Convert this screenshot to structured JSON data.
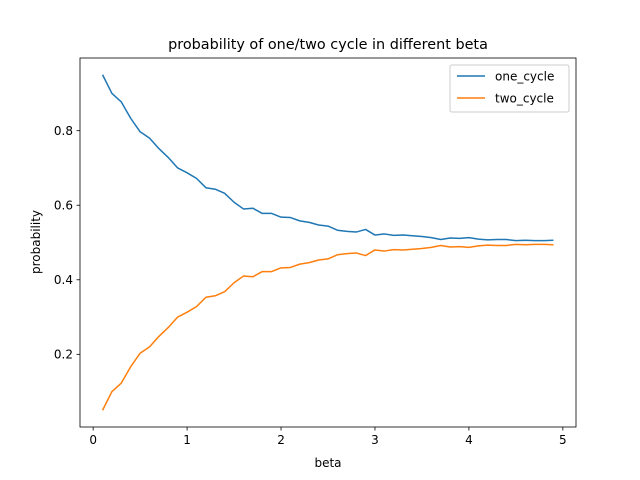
{
  "chart_data": {
    "type": "line",
    "title": "probability of one/two cycle in different beta",
    "xlabel": "beta",
    "ylabel": "probability",
    "xlim": [
      -0.14,
      5.14
    ],
    "ylim": [
      0.005,
      0.995
    ],
    "xticks": [
      0,
      1,
      2,
      3,
      4,
      5
    ],
    "xtick_labels": [
      "0",
      "1",
      "2",
      "3",
      "4",
      "5"
    ],
    "yticks": [
      0.2,
      0.4,
      0.6,
      0.8
    ],
    "ytick_labels": [
      "0.2",
      "0.4",
      "0.6",
      "0.8"
    ],
    "grid": false,
    "legend_position": "upper right",
    "x": [
      0.1,
      0.2,
      0.3,
      0.4,
      0.5,
      0.6,
      0.7,
      0.8,
      0.9,
      1.0,
      1.1,
      1.2,
      1.3,
      1.4,
      1.5,
      1.6,
      1.7,
      1.8,
      1.9,
      2.0,
      2.1,
      2.2,
      2.3,
      2.4,
      2.5,
      2.6,
      2.7,
      2.8,
      2.9,
      3.0,
      3.1,
      3.2,
      3.3,
      3.4,
      3.5,
      3.6,
      3.7,
      3.8,
      3.9,
      4.0,
      4.1,
      4.2,
      4.3,
      4.4,
      4.5,
      4.6,
      4.7,
      4.8,
      4.9
    ],
    "series": [
      {
        "name": "one_cycle",
        "color": "#1f77b4",
        "values": [
          0.95,
          0.9,
          0.877,
          0.833,
          0.797,
          0.78,
          0.752,
          0.728,
          0.7,
          0.687,
          0.672,
          0.647,
          0.643,
          0.632,
          0.608,
          0.59,
          0.592,
          0.578,
          0.578,
          0.568,
          0.567,
          0.558,
          0.554,
          0.547,
          0.544,
          0.533,
          0.53,
          0.528,
          0.535,
          0.52,
          0.523,
          0.519,
          0.52,
          0.518,
          0.516,
          0.513,
          0.508,
          0.512,
          0.511,
          0.513,
          0.509,
          0.507,
          0.508,
          0.508,
          0.505,
          0.506,
          0.505,
          0.505,
          0.506
        ]
      },
      {
        "name": "two_cycle",
        "color": "#ff7f0e",
        "values": [
          0.05,
          0.1,
          0.123,
          0.167,
          0.203,
          0.22,
          0.248,
          0.272,
          0.3,
          0.313,
          0.328,
          0.353,
          0.357,
          0.368,
          0.392,
          0.41,
          0.408,
          0.422,
          0.422,
          0.432,
          0.433,
          0.442,
          0.446,
          0.453,
          0.456,
          0.467,
          0.47,
          0.472,
          0.465,
          0.48,
          0.477,
          0.481,
          0.48,
          0.482,
          0.484,
          0.487,
          0.492,
          0.488,
          0.489,
          0.487,
          0.491,
          0.493,
          0.492,
          0.492,
          0.495,
          0.494,
          0.495,
          0.495,
          0.494
        ]
      }
    ]
  }
}
